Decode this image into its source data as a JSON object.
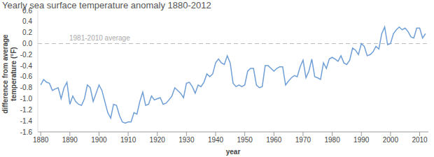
{
  "chart_data": {
    "type": "line",
    "title": "Yearly sea surface temperature anomaly 1880-2012",
    "xlabel": "year",
    "ylabel": [
      "difference from average",
      "temperature (°F)"
    ],
    "annotations": [
      {
        "text": "1981-2010 average",
        "y": 0
      }
    ],
    "xlim": [
      1879,
      2013
    ],
    "xticks": [
      1880,
      1890,
      1900,
      1910,
      1920,
      1930,
      1940,
      1950,
      1960,
      1970,
      1980,
      1990,
      2000,
      2010
    ],
    "ylim": [
      -1.6,
      0.6
    ],
    "yticks": [
      0.6,
      0.4,
      0.2,
      {
        "value": 0,
        "label": "0.0"
      },
      -0.2,
      -0.4,
      -0.6,
      -0.8,
      {
        "value": -1,
        "label": "-1.0"
      },
      -1.2,
      -1.4,
      -1.6
    ],
    "grid": false,
    "x": [
      1880,
      1881,
      1882,
      1883,
      1884,
      1885,
      1886,
      1887,
      1888,
      1889,
      1890,
      1891,
      1892,
      1893,
      1894,
      1895,
      1896,
      1897,
      1898,
      1899,
      1900,
      1901,
      1902,
      1903,
      1904,
      1905,
      1906,
      1907,
      1908,
      1909,
      1910,
      1911,
      1912,
      1913,
      1914,
      1915,
      1916,
      1917,
      1918,
      1919,
      1920,
      1921,
      1922,
      1923,
      1924,
      1925,
      1926,
      1927,
      1928,
      1929,
      1930,
      1931,
      1932,
      1933,
      1934,
      1935,
      1936,
      1937,
      1938,
      1939,
      1940,
      1941,
      1942,
      1943,
      1944,
      1945,
      1946,
      1947,
      1948,
      1949,
      1950,
      1951,
      1952,
      1953,
      1954,
      1955,
      1956,
      1957,
      1958,
      1959,
      1960,
      1961,
      1962,
      1963,
      1964,
      1965,
      1966,
      1967,
      1968,
      1969,
      1970,
      1971,
      1972,
      1973,
      1974,
      1975,
      1976,
      1977,
      1978,
      1979,
      1980,
      1981,
      1982,
      1983,
      1984,
      1985,
      1986,
      1987,
      1988,
      1989,
      1990,
      1991,
      1992,
      1993,
      1994,
      1995,
      1996,
      1997,
      1998,
      1999,
      2000,
      2001,
      2002,
      2003,
      2004,
      2005,
      2006,
      2007,
      2008,
      2009,
      2010,
      2011,
      2012
    ],
    "values": [
      -0.75,
      -0.65,
      -0.7,
      -0.72,
      -0.85,
      -0.82,
      -0.8,
      -1.0,
      -0.8,
      -0.7,
      -1.1,
      -0.95,
      -1.05,
      -1.1,
      -1.12,
      -1.0,
      -0.75,
      -0.8,
      -1.05,
      -0.9,
      -0.75,
      -0.85,
      -1.05,
      -1.25,
      -1.35,
      -1.1,
      -1.12,
      -1.3,
      -1.42,
      -1.44,
      -1.42,
      -1.42,
      -1.25,
      -1.28,
      -1.05,
      -0.88,
      -1.12,
      -1.1,
      -0.95,
      -1.02,
      -1.0,
      -0.98,
      -1.1,
      -1.08,
      -1.02,
      -0.95,
      -0.8,
      -0.85,
      -0.9,
      -0.98,
      -0.72,
      -0.7,
      -0.78,
      -0.9,
      -0.75,
      -0.78,
      -0.7,
      -0.55,
      -0.6,
      -0.55,
      -0.35,
      -0.28,
      -0.35,
      -0.38,
      -0.22,
      -0.35,
      -0.72,
      -0.78,
      -0.75,
      -0.78,
      -0.75,
      -0.5,
      -0.45,
      -0.45,
      -0.75,
      -0.8,
      -0.78,
      -0.4,
      -0.4,
      -0.45,
      -0.5,
      -0.45,
      -0.42,
      -0.42,
      -0.75,
      -0.68,
      -0.62,
      -0.58,
      -0.6,
      -0.42,
      -0.3,
      -0.62,
      -0.5,
      -0.28,
      -0.6,
      -0.62,
      -0.65,
      -0.35,
      -0.45,
      -0.28,
      -0.25,
      -0.28,
      -0.32,
      -0.22,
      -0.35,
      -0.38,
      -0.3,
      -0.08,
      -0.12,
      -0.2,
      0.0,
      -0.05,
      -0.22,
      -0.2,
      -0.15,
      -0.05,
      -0.1,
      0.18,
      0.3,
      -0.02,
      0.0,
      0.18,
      0.25,
      0.3,
      0.25,
      0.28,
      0.22,
      0.12,
      0.1,
      0.28,
      0.28,
      0.1,
      0.18
    ],
    "color": "#6f9fd6",
    "marker": "none",
    "line_style": "solid"
  }
}
